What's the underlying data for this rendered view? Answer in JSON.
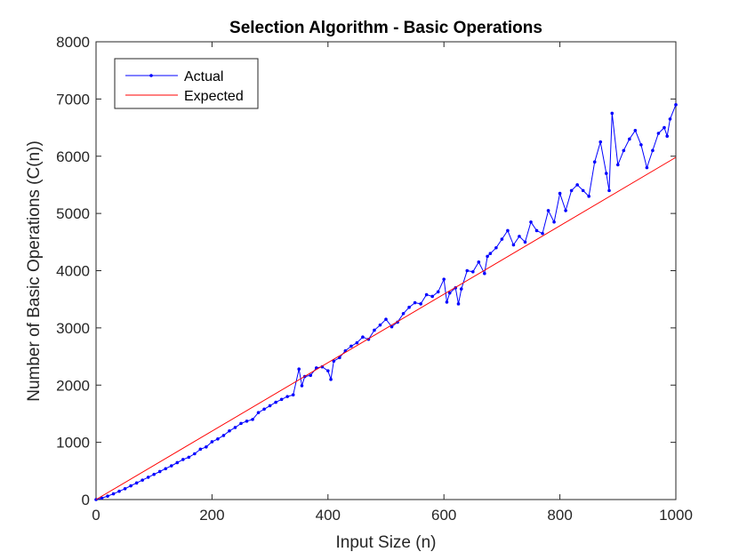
{
  "chart_data": {
    "type": "line",
    "title": "Selection Algorithm - Basic Operations",
    "xlabel": "Input Size (n)",
    "ylabel": "Number of Basic Operations (C(n))",
    "xlim": [
      0,
      1000
    ],
    "ylim": [
      0,
      8000
    ],
    "xticks": [
      0,
      200,
      400,
      600,
      800,
      1000
    ],
    "yticks": [
      0,
      1000,
      2000,
      3000,
      4000,
      5000,
      6000,
      7000,
      8000
    ],
    "grid": false,
    "legend_position": "top-left",
    "series": [
      {
        "name": "Actual",
        "color": "#0000ff",
        "marker": "dot",
        "x": [
          0,
          10,
          20,
          30,
          40,
          50,
          60,
          70,
          80,
          90,
          100,
          110,
          120,
          130,
          140,
          150,
          160,
          170,
          180,
          190,
          200,
          210,
          220,
          230,
          240,
          250,
          260,
          270,
          280,
          290,
          300,
          310,
          320,
          330,
          340,
          350,
          355,
          360,
          370,
          380,
          390,
          400,
          405,
          410,
          420,
          430,
          440,
          450,
          460,
          470,
          480,
          490,
          500,
          510,
          520,
          530,
          540,
          550,
          560,
          570,
          580,
          590,
          600,
          605,
          610,
          620,
          625,
          630,
          640,
          650,
          660,
          670,
          675,
          680,
          690,
          700,
          710,
          720,
          730,
          740,
          750,
          760,
          770,
          780,
          790,
          800,
          810,
          820,
          830,
          840,
          850,
          860,
          870,
          880,
          885,
          890,
          900,
          910,
          920,
          930,
          940,
          950,
          960,
          970,
          980,
          985,
          990,
          1000
        ],
        "values": [
          0,
          25,
          60,
          100,
          145,
          190,
          240,
          290,
          340,
          390,
          440,
          490,
          540,
          590,
          645,
          700,
          740,
          800,
          880,
          920,
          1010,
          1060,
          1120,
          1200,
          1260,
          1330,
          1370,
          1400,
          1520,
          1580,
          1640,
          1700,
          1750,
          1800,
          1830,
          2280,
          1990,
          2150,
          2170,
          2300,
          2320,
          2250,
          2100,
          2420,
          2480,
          2600,
          2680,
          2740,
          2840,
          2800,
          2960,
          3050,
          3150,
          3020,
          3100,
          3250,
          3360,
          3440,
          3420,
          3580,
          3550,
          3630,
          3850,
          3450,
          3610,
          3700,
          3420,
          3680,
          4000,
          3980,
          4150,
          3950,
          4250,
          4300,
          4400,
          4550,
          4700,
          4450,
          4600,
          4500,
          4850,
          4700,
          4650,
          5050,
          4850,
          5350,
          5050,
          5400,
          5500,
          5400,
          5300,
          5900,
          6250,
          5700,
          5400,
          6750,
          5850,
          6100,
          6300,
          6450,
          6200,
          5800,
          6100,
          6400,
          6500,
          6350,
          6650,
          6900
        ]
      },
      {
        "name": "Expected",
        "color": "#ff0000",
        "marker": "none",
        "x": [
          0,
          1000
        ],
        "values": [
          0,
          5980
        ]
      }
    ]
  }
}
